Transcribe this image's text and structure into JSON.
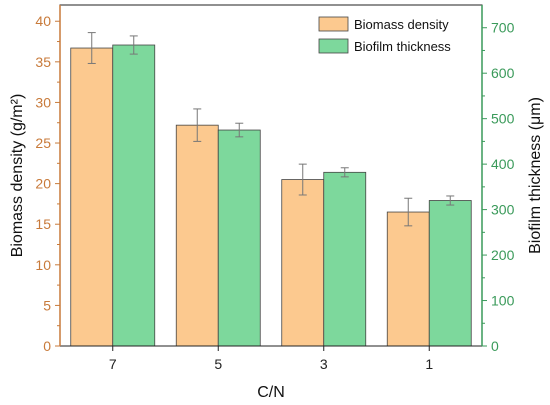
{
  "chart_data": {
    "type": "bar",
    "xlabel": "C/N",
    "categories": [
      "7",
      "5",
      "3",
      "1"
    ],
    "y_left": {
      "label": "Biomass density (g/m²)",
      "ylim": [
        0,
        42
      ],
      "ticks": [
        "0",
        "5",
        "10",
        "15",
        "20",
        "25",
        "30",
        "35",
        "40"
      ],
      "color": "#c87a3a"
    },
    "y_right": {
      "label": "Biofilm thickness (μm)",
      "ylim": [
        0,
        750
      ],
      "ticks": [
        "0",
        "100",
        "200",
        "300",
        "400",
        "500",
        "600",
        "700"
      ],
      "color": "#3a9a5a"
    },
    "series": [
      {
        "name": "Biomass density",
        "axis": "left",
        "values": [
          36.7,
          27.2,
          20.5,
          16.5
        ],
        "errors": [
          1.9,
          2.0,
          1.9,
          1.7
        ],
        "color": "#fcc98f"
      },
      {
        "name": "Biofilm thickness",
        "axis": "right",
        "values": [
          662,
          475,
          382,
          320
        ],
        "errors": [
          20,
          15,
          10,
          10
        ],
        "color": "#7dd89c"
      }
    ],
    "legend": "top-right",
    "grid": false
  }
}
